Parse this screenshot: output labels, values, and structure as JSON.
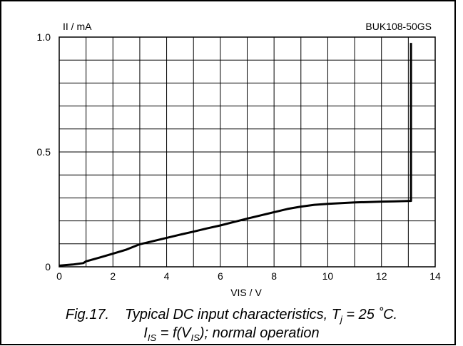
{
  "chart_data": {
    "type": "line",
    "title": "BUK108-50GS",
    "xlabel": "VIS / V",
    "ylabel": "II / mA",
    "xlim": [
      0,
      14
    ],
    "ylim": [
      0,
      1.0
    ],
    "x_ticks": [
      "0",
      "2",
      "4",
      "6",
      "8",
      "10",
      "12",
      "14"
    ],
    "y_ticks": [
      "0",
      "0.5",
      "1.0"
    ],
    "grid": true,
    "series": [
      {
        "x": [
          0,
          0.5,
          0.9,
          1.0,
          1.5,
          2.0,
          2.5,
          3.0,
          3.5,
          4.0,
          4.5,
          5.0,
          5.5,
          6.0,
          6.5,
          7.0,
          7.5,
          8.0,
          8.5,
          9.0,
          9.5,
          10.0,
          10.5,
          11.0,
          11.5,
          12.0,
          12.5,
          13.1,
          13.1,
          13.1
        ],
        "y": [
          0.005,
          0.01,
          0.016,
          0.024,
          0.04,
          0.057,
          0.075,
          0.098,
          0.112,
          0.126,
          0.14,
          0.153,
          0.167,
          0.18,
          0.195,
          0.21,
          0.224,
          0.238,
          0.252,
          0.262,
          0.27,
          0.274,
          0.277,
          0.28,
          0.282,
          0.284,
          0.285,
          0.287,
          0.6,
          0.975
        ]
      }
    ]
  },
  "caption": {
    "line1_fig": "Fig.17.",
    "line1_text": "Typical DC input characteristics, T",
    "line1_sub": "j",
    "line1_end": " = 25 ˚C.",
    "line2_a": "I",
    "line2_a_sub": "IS",
    "line2_b": " = f(V",
    "line2_b_sub": "IS",
    "line2_c": "); normal operation"
  }
}
